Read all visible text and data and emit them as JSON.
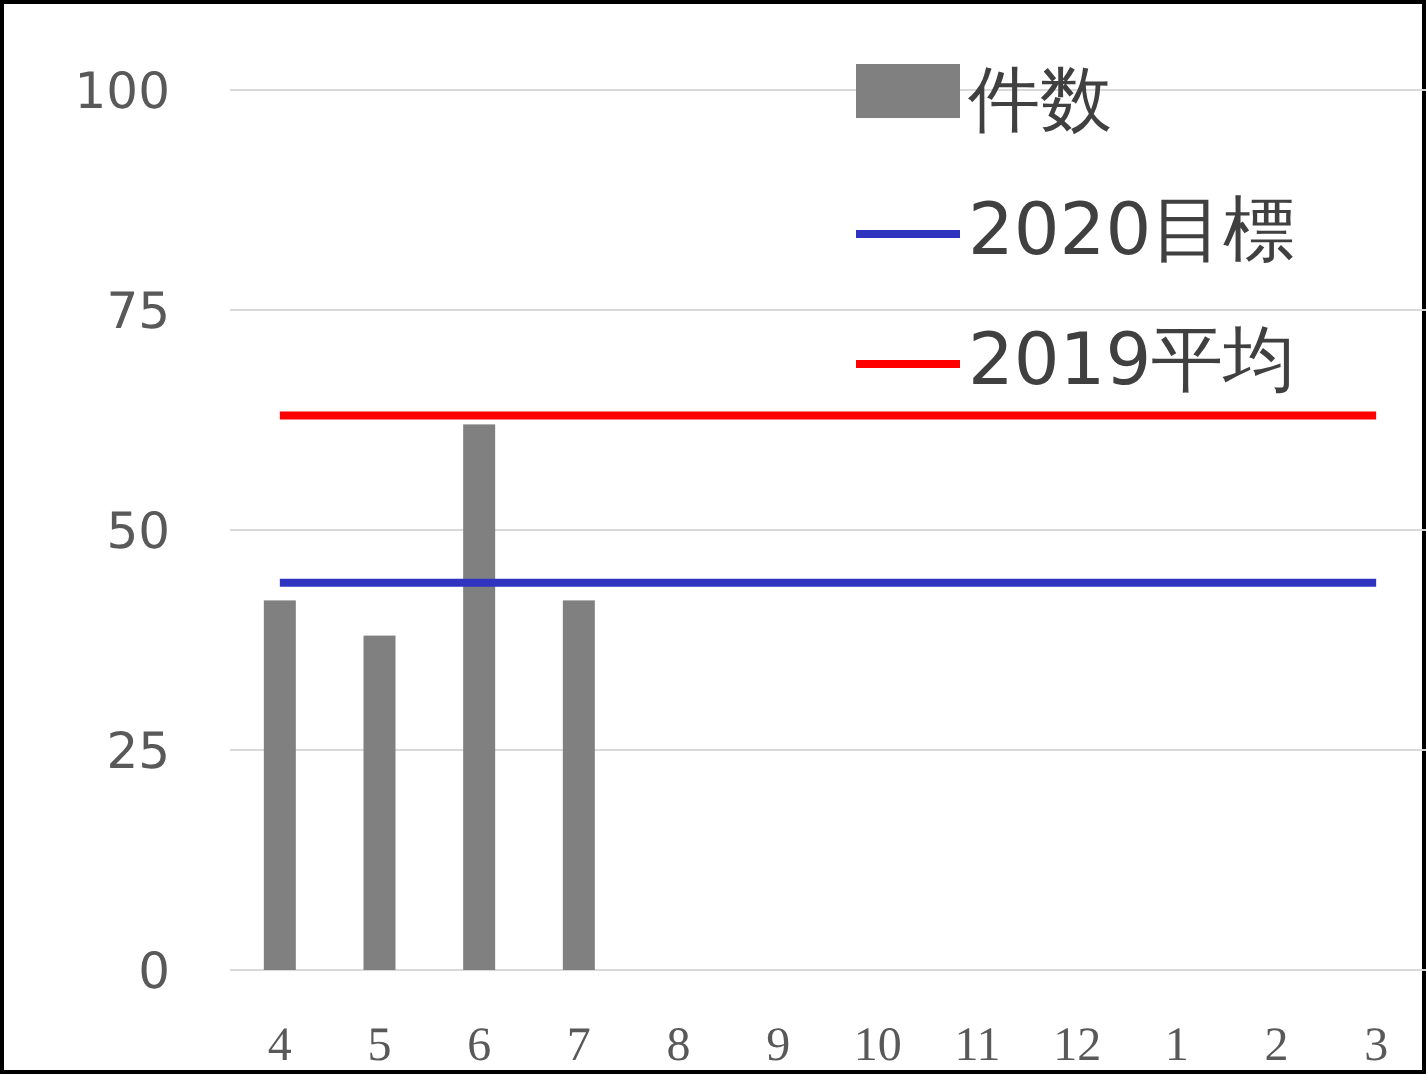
{
  "chart_data": {
    "type": "bar",
    "categories": [
      "4",
      "5",
      "6",
      "7",
      "8",
      "9",
      "10",
      "11",
      "12",
      "1",
      "2",
      "3"
    ],
    "series": [
      {
        "name": "件数",
        "color": "#808080",
        "values": [
          42,
          38,
          62,
          42,
          null,
          null,
          null,
          null,
          null,
          null,
          null,
          null
        ]
      },
      {
        "name": "2020目標",
        "type": "line",
        "color": "#2e33c0",
        "values": [
          44,
          44,
          44,
          44,
          44,
          44,
          44,
          44,
          44,
          44,
          44,
          44
        ]
      },
      {
        "name": "2019平均",
        "type": "line",
        "color": "#ff0000",
        "values": [
          63,
          63,
          63,
          63,
          63,
          63,
          63,
          63,
          63,
          63,
          63,
          63
        ]
      }
    ],
    "ylim": [
      0,
      100
    ],
    "yticks": [
      0,
      25,
      50,
      75,
      100
    ],
    "grid": "y",
    "legend": "top right"
  }
}
